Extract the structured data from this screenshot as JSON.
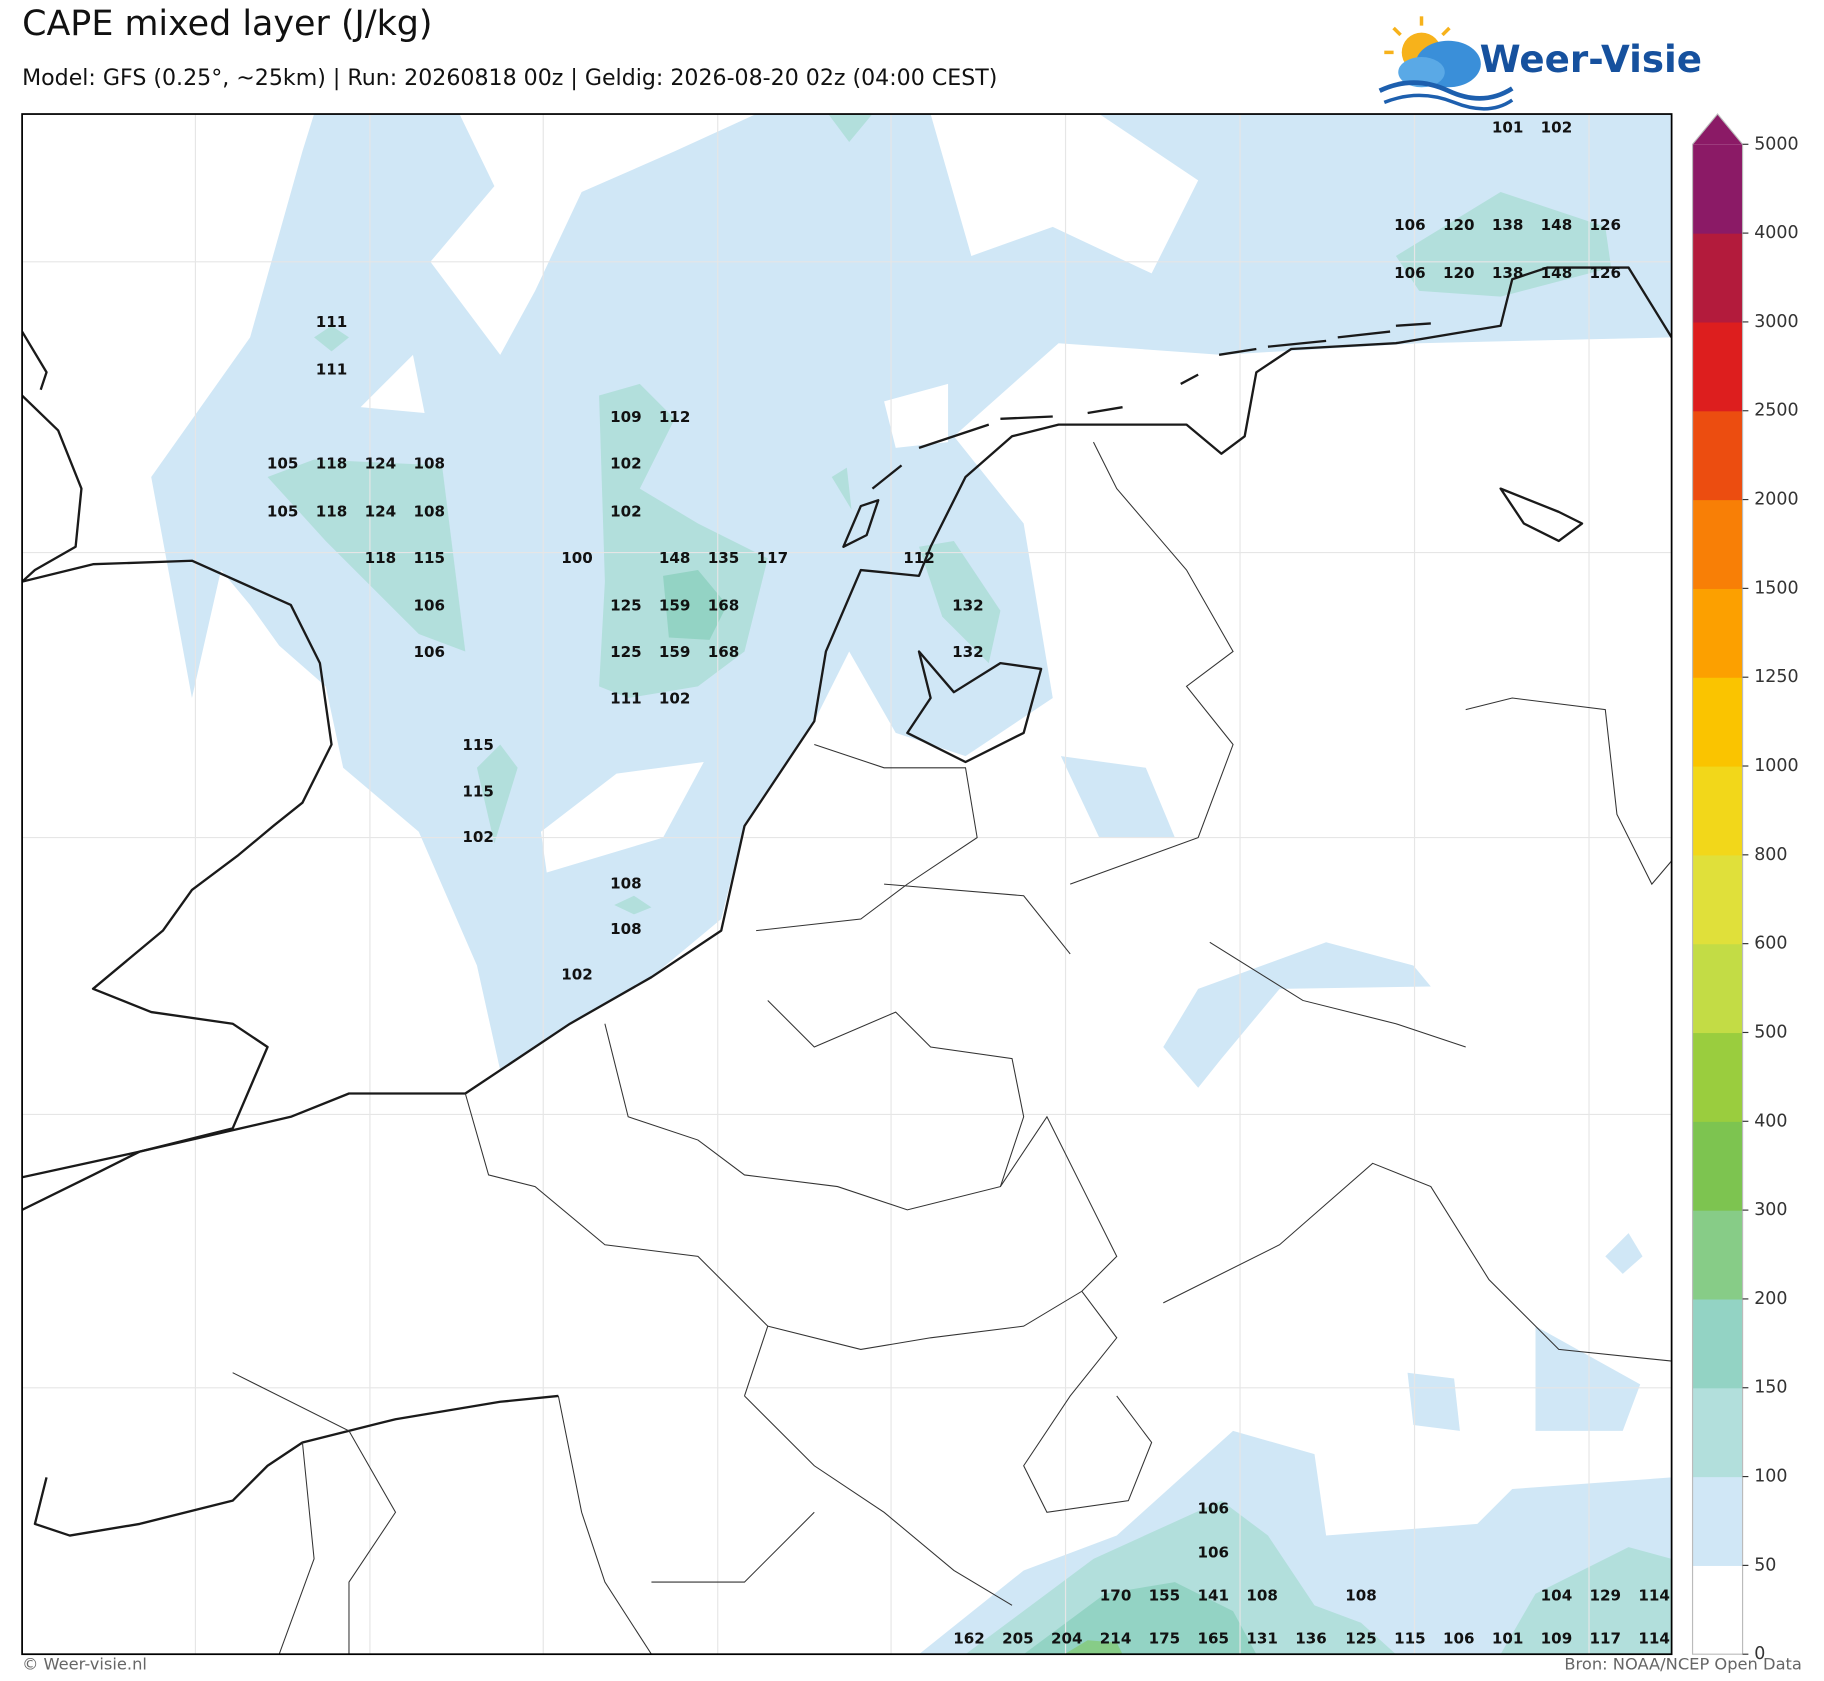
{
  "header": {
    "title": "CAPE mixed layer (J/kg)",
    "subtitle": "Model: GFS (0.25°, ~25km)  |  Run: 20260818 00z  |  Geldig: 2026-08-20 02z (04:00 CEST)",
    "logo": "Weer-Visie"
  },
  "map": {
    "labels": [
      101,
      102,
      106,
      120,
      138,
      148,
      126,
      106,
      120,
      138,
      148,
      126,
      111,
      111,
      109,
      112,
      105,
      118,
      124,
      108,
      102,
      105,
      118,
      124,
      108,
      102,
      118,
      115,
      100,
      148,
      135,
      117,
      112,
      106,
      125,
      159,
      168,
      132,
      106,
      125,
      159,
      168,
      132,
      111,
      102,
      115,
      115,
      102,
      108,
      108,
      102,
      106,
      106,
      170,
      155,
      141,
      108,
      108,
      104,
      129,
      114,
      162,
      205,
      204,
      214,
      175,
      165,
      131,
      136,
      125,
      115,
      106,
      101,
      109,
      117,
      114
    ]
  },
  "colorbar": {
    "ticks": [
      0,
      50,
      100,
      150,
      200,
      300,
      400,
      500,
      600,
      800,
      1000,
      1250,
      1500,
      2000,
      2500,
      3000,
      4000,
      5000
    ],
    "colors": [
      "#ffffff",
      "#d0e7f6",
      "#b2dfdc",
      "#93d3c4",
      "#87cc87",
      "#7dc450",
      "#9acd3e",
      "#c3dc45",
      "#e0e03a",
      "#f2d71a",
      "#fac400",
      "#fca000",
      "#f87f06",
      "#ec4d10",
      "#dd1e1e",
      "#b31b3c",
      "#8b1a66"
    ],
    "extend_color": "#8b1a66"
  },
  "footer": {
    "copyright": "© Weer-visie.nl",
    "source": "Bron: NOAA/NCEP Open Data"
  }
}
